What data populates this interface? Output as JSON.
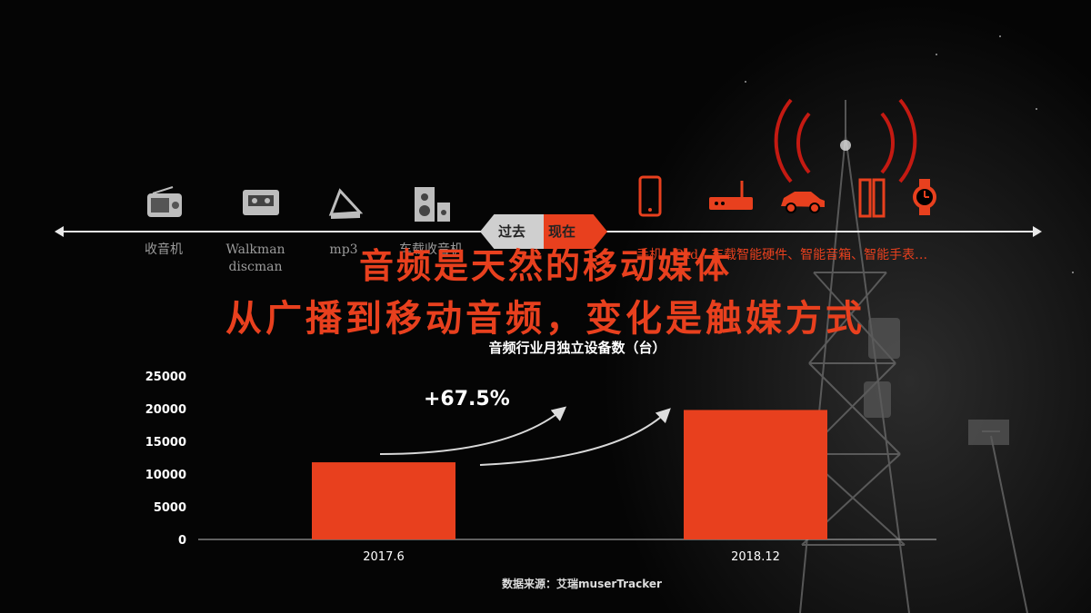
{
  "headline": {
    "line1": "音频是天然的移动媒体",
    "line2": "从广播到移动音频，变化是触媒方式"
  },
  "timeline": {
    "past_label": "过去",
    "now_label": "现在",
    "past_items": [
      {
        "label": "收音机",
        "icon": "radio-icon"
      },
      {
        "label": "Walkman\ndiscman",
        "icon": "cassette-icon"
      },
      {
        "label": "mp3",
        "icon": "mp3-player-icon"
      },
      {
        "label": "车载收音机",
        "icon": "speaker-icon"
      }
    ],
    "now_label_text": "手机、Pad、车载智能硬件、智能音箱、智能手表…",
    "now_icons": [
      "smartphone-icon",
      "router-icon",
      "car-icon",
      "smart-speaker-icon",
      "smartwatch-icon",
      "broadcast-waves-icon"
    ]
  },
  "chart_data": {
    "type": "bar",
    "title": "音频行业月独立设备数（台）",
    "categories": [
      "2017.6",
      "2018.12"
    ],
    "values": [
      11800,
      19800
    ],
    "ylim": [
      0,
      25000
    ],
    "yticks": [
      "0",
      "5000",
      "10000",
      "15000",
      "20000",
      "25000"
    ],
    "annotation": "+67.5%",
    "bar_color": "#e8401e",
    "grid": false
  },
  "source": "数据来源：艾瑞muserTracker",
  "colors": {
    "accent": "#e8401e",
    "text": "#ffffff",
    "muted": "#9b9b9b"
  }
}
